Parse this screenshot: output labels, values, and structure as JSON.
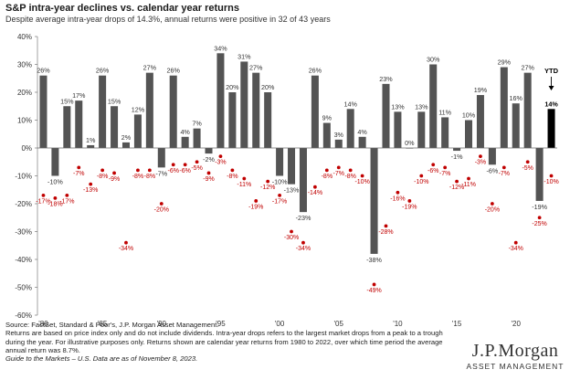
{
  "title": "S&P intra-year declines vs. calendar year returns",
  "subtitle": "Despite average intra-year drops of 14.3%, annual returns were positive in 32 of 43 years",
  "chart_data": {
    "type": "bar",
    "years": [
      1980,
      1981,
      1982,
      1983,
      1984,
      1985,
      1986,
      1987,
      1988,
      1989,
      1990,
      1991,
      1992,
      1993,
      1994,
      1995,
      1996,
      1997,
      1998,
      1999,
      2000,
      2001,
      2002,
      2003,
      2004,
      2005,
      2006,
      2007,
      2008,
      2009,
      2010,
      2011,
      2012,
      2013,
      2014,
      2015,
      2016,
      2017,
      2018,
      2019,
      2020,
      2021,
      2022,
      2023
    ],
    "annual_returns": [
      26,
      -10,
      15,
      17,
      1,
      26,
      15,
      2,
      12,
      27,
      -7,
      26,
      4,
      7,
      -2,
      34,
      20,
      31,
      27,
      20,
      -10,
      -13,
      -23,
      26,
      9,
      3,
      14,
      4,
      -38,
      23,
      13,
      0,
      13,
      30,
      11,
      -1,
      10,
      19,
      -6,
      29,
      16,
      27,
      -19,
      14
    ],
    "annual_return_labels": [
      "26%",
      "-10%",
      "15%",
      "17%",
      "1%",
      "26%",
      "15%",
      "2%",
      "12%",
      "27%",
      "-7%",
      "26%",
      "4%",
      "7%",
      "-2%",
      "34%",
      "20%",
      "31%",
      "27%",
      "20%",
      "-10%",
      "-13%",
      "-23%",
      "26%",
      "9%",
      "3%",
      "14%",
      "4%",
      "-38%",
      "23%",
      "13%",
      "0%",
      "13%",
      "30%",
      "11%",
      "-1%",
      "10%",
      "19%",
      "-6%",
      "29%",
      "16%",
      "27%",
      "-19%",
      "14%"
    ],
    "intra_year_declines": [
      -17,
      -18,
      -17,
      -7,
      -13,
      -8,
      -9,
      -34,
      -8,
      -8,
      -20,
      -6,
      -6,
      -5,
      -9,
      -3,
      -8,
      -11,
      -19,
      -12,
      -17,
      -30,
      -34,
      -14,
      -8,
      -7,
      -8,
      -10,
      -49,
      -28,
      -16,
      -19,
      -10,
      -6,
      -7,
      -12,
      -11,
      -3,
      -20,
      -7,
      -34,
      -5,
      -25,
      -10
    ],
    "intra_year_decline_labels": [
      "-17%",
      "-18%",
      "-17%",
      "-7%",
      "-13%",
      "-8%",
      "-9%",
      "-34%",
      "-8%",
      "-8%",
      "-20%",
      "-6%",
      "-6%",
      "-5%",
      "-9%",
      "-3%",
      "-8%",
      "-11%",
      "-19%",
      "-12%",
      "-17%",
      "-30%",
      "-34%",
      "-14%",
      "-8%",
      "-7%",
      "-8%",
      "-10%",
      "-49%",
      "-28%",
      "-16%",
      "-19%",
      "-10%",
      "-6%",
      "-7%",
      "-12%",
      "-11%",
      "-3%",
      "-20%",
      "-7%",
      "-34%",
      "-5%",
      "-25%",
      "-10%"
    ],
    "x_tick_labels": [
      "'80",
      "'85",
      "'90",
      "'95",
      "'00",
      "'05",
      "'10",
      "'15",
      "'20"
    ],
    "x_tick_years": [
      1980,
      1985,
      1990,
      1995,
      2000,
      2005,
      2010,
      2015,
      2020
    ],
    "y_tick_labels": [
      "40%",
      "30%",
      "20%",
      "10%",
      "0%",
      "-10%",
      "-20%",
      "-30%",
      "-40%",
      "-50%",
      "-60%"
    ],
    "ylim": [
      -60,
      40
    ],
    "ytd_label": "YTD",
    "ytd_value_label": "14%",
    "ytd_decline_label": "-10%",
    "colors": {
      "bar": "#545454",
      "ytd_bar": "#000000",
      "decline_dot": "#c00000",
      "decline_text": "#c00000",
      "axis": "#666666"
    }
  },
  "footer": {
    "source": "Source: FactSet, Standard & Poor's, J.P. Morgan Asset Management.",
    "line2": "Returns are based on price index only and do not include dividends. Intra-year drops refers to the largest market drops from a peak to a trough",
    "line3": "during the year. For illustrative purposes only. Returns shown are calendar year returns from 1980 to 2022, over which time period the average",
    "line4": "annual return was 8.7%.",
    "guide": "Guide to the Markets – U.S. Data are as of November 8, 2023."
  },
  "logo": {
    "name": "J.P.Morgan",
    "sub": "ASSET MANAGEMENT"
  }
}
